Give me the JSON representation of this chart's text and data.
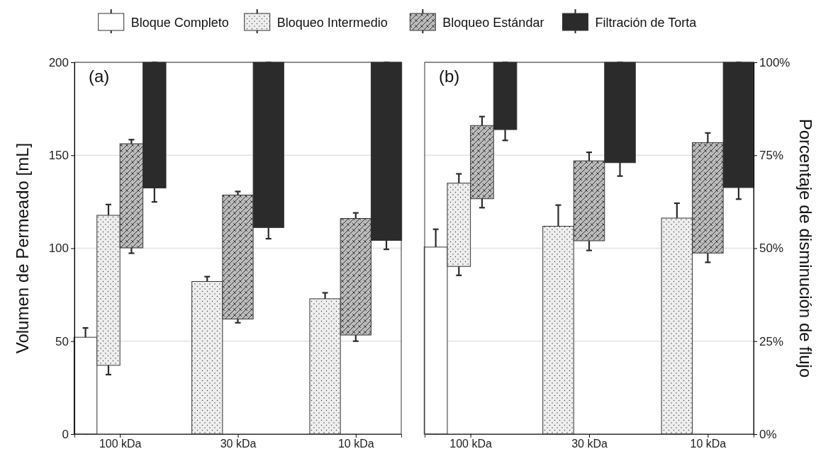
{
  "chart_data": [
    {
      "type": "bar",
      "annotations": [
        "(a)"
      ],
      "ylabel": "Volumen de Permeado [mL]",
      "categories": [
        "100 kDa",
        "30 kDa",
        "10 kDa"
      ],
      "ylim": [
        0,
        200
      ],
      "yticks": [
        0,
        50,
        100,
        150,
        200
      ],
      "grid": "y",
      "legend": "top",
      "series": [
        {
          "name": "Bloque Completo",
          "color": "#ffffff",
          "base": [
            0,
            null,
            null
          ],
          "values": [
            52.1,
            null,
            null
          ],
          "errors": [
            [
              0,
              57.1
            ],
            null,
            null
          ]
        },
        {
          "name": "Bloqueo Intermedio",
          "color": "#eeeeee",
          "base": [
            37.0,
            0,
            0
          ],
          "values": [
            80.7,
            82.1,
            72.8
          ],
          "errors": [
            [
              32.0,
              123.5
            ],
            [
              0,
              84.7
            ],
            [
              0,
              76.0
            ]
          ]
        },
        {
          "name": "Bloqueo Estándar",
          "color": "#bbbbbb",
          "base": [
            100.2,
            61.9,
            53.3
          ],
          "values": [
            56.0,
            66.7,
            62.7
          ],
          "errors": [
            [
              97.3,
              158.4
            ],
            [
              59.9,
              130.5
            ],
            [
              50.0,
              119.0
            ]
          ]
        },
        {
          "name": "Filtración de Torta",
          "color": "#2b2b2b",
          "base": [
            132.4,
            111.1,
            104.2
          ],
          "values": [
            67.6,
            88.9,
            95.8
          ],
          "errors": [
            [
              124.9,
              200
            ],
            [
              105.1,
              200
            ],
            [
              99.4,
              200
            ]
          ]
        }
      ]
    },
    {
      "type": "bar",
      "annotations": [
        "(b)"
      ],
      "y2label": "Porcentaje de disminución de flujo",
      "categories": [
        "100 kDa",
        "30 kDa",
        "10 kDa"
      ],
      "y2lim": [
        0,
        100
      ],
      "y2ticks": [
        {
          "value": 0,
          "label": "0%"
        },
        {
          "value": 25,
          "label": "25%"
        },
        {
          "value": 50,
          "label": "50%"
        },
        {
          "value": 75,
          "label": "75%"
        },
        {
          "value": 100,
          "label": "100%"
        }
      ],
      "grid": "y",
      "series": [
        {
          "color": "#ffffff",
          "axis": "y2",
          "base": [
            0,
            null,
            null
          ],
          "values": [
            50.3,
            null,
            null
          ],
          "errors": [
            [
              0,
              55.1
            ],
            null,
            null
          ]
        },
        {
          "color": "#eeeeee",
          "axis": "y2",
          "base": [
            45.1,
            0,
            0
          ],
          "values": [
            22.4,
            55.9,
            58.1
          ],
          "errors": [
            [
              42.7,
              70.0
            ],
            [
              0,
              61.6
            ],
            [
              0,
              62.1
            ]
          ]
        },
        {
          "color": "#bbbbbb",
          "axis": "y2",
          "base": [
            63.3,
            52.0,
            48.7
          ],
          "values": [
            19.7,
            21.5,
            29.7
          ],
          "errors": [
            [
              60.9,
              85.4
            ],
            [
              49.4,
              75.8
            ],
            [
              46.2,
              81.0
            ]
          ]
        },
        {
          "color": "#2b2b2b",
          "axis": "y2",
          "base": [
            81.9,
            73.0,
            66.3
          ],
          "values": [
            18.1,
            27.0,
            33.7
          ],
          "errors": [
            [
              79.0,
              100
            ],
            [
              69.4,
              100
            ],
            [
              63.2,
              100
            ]
          ]
        }
      ]
    }
  ]
}
